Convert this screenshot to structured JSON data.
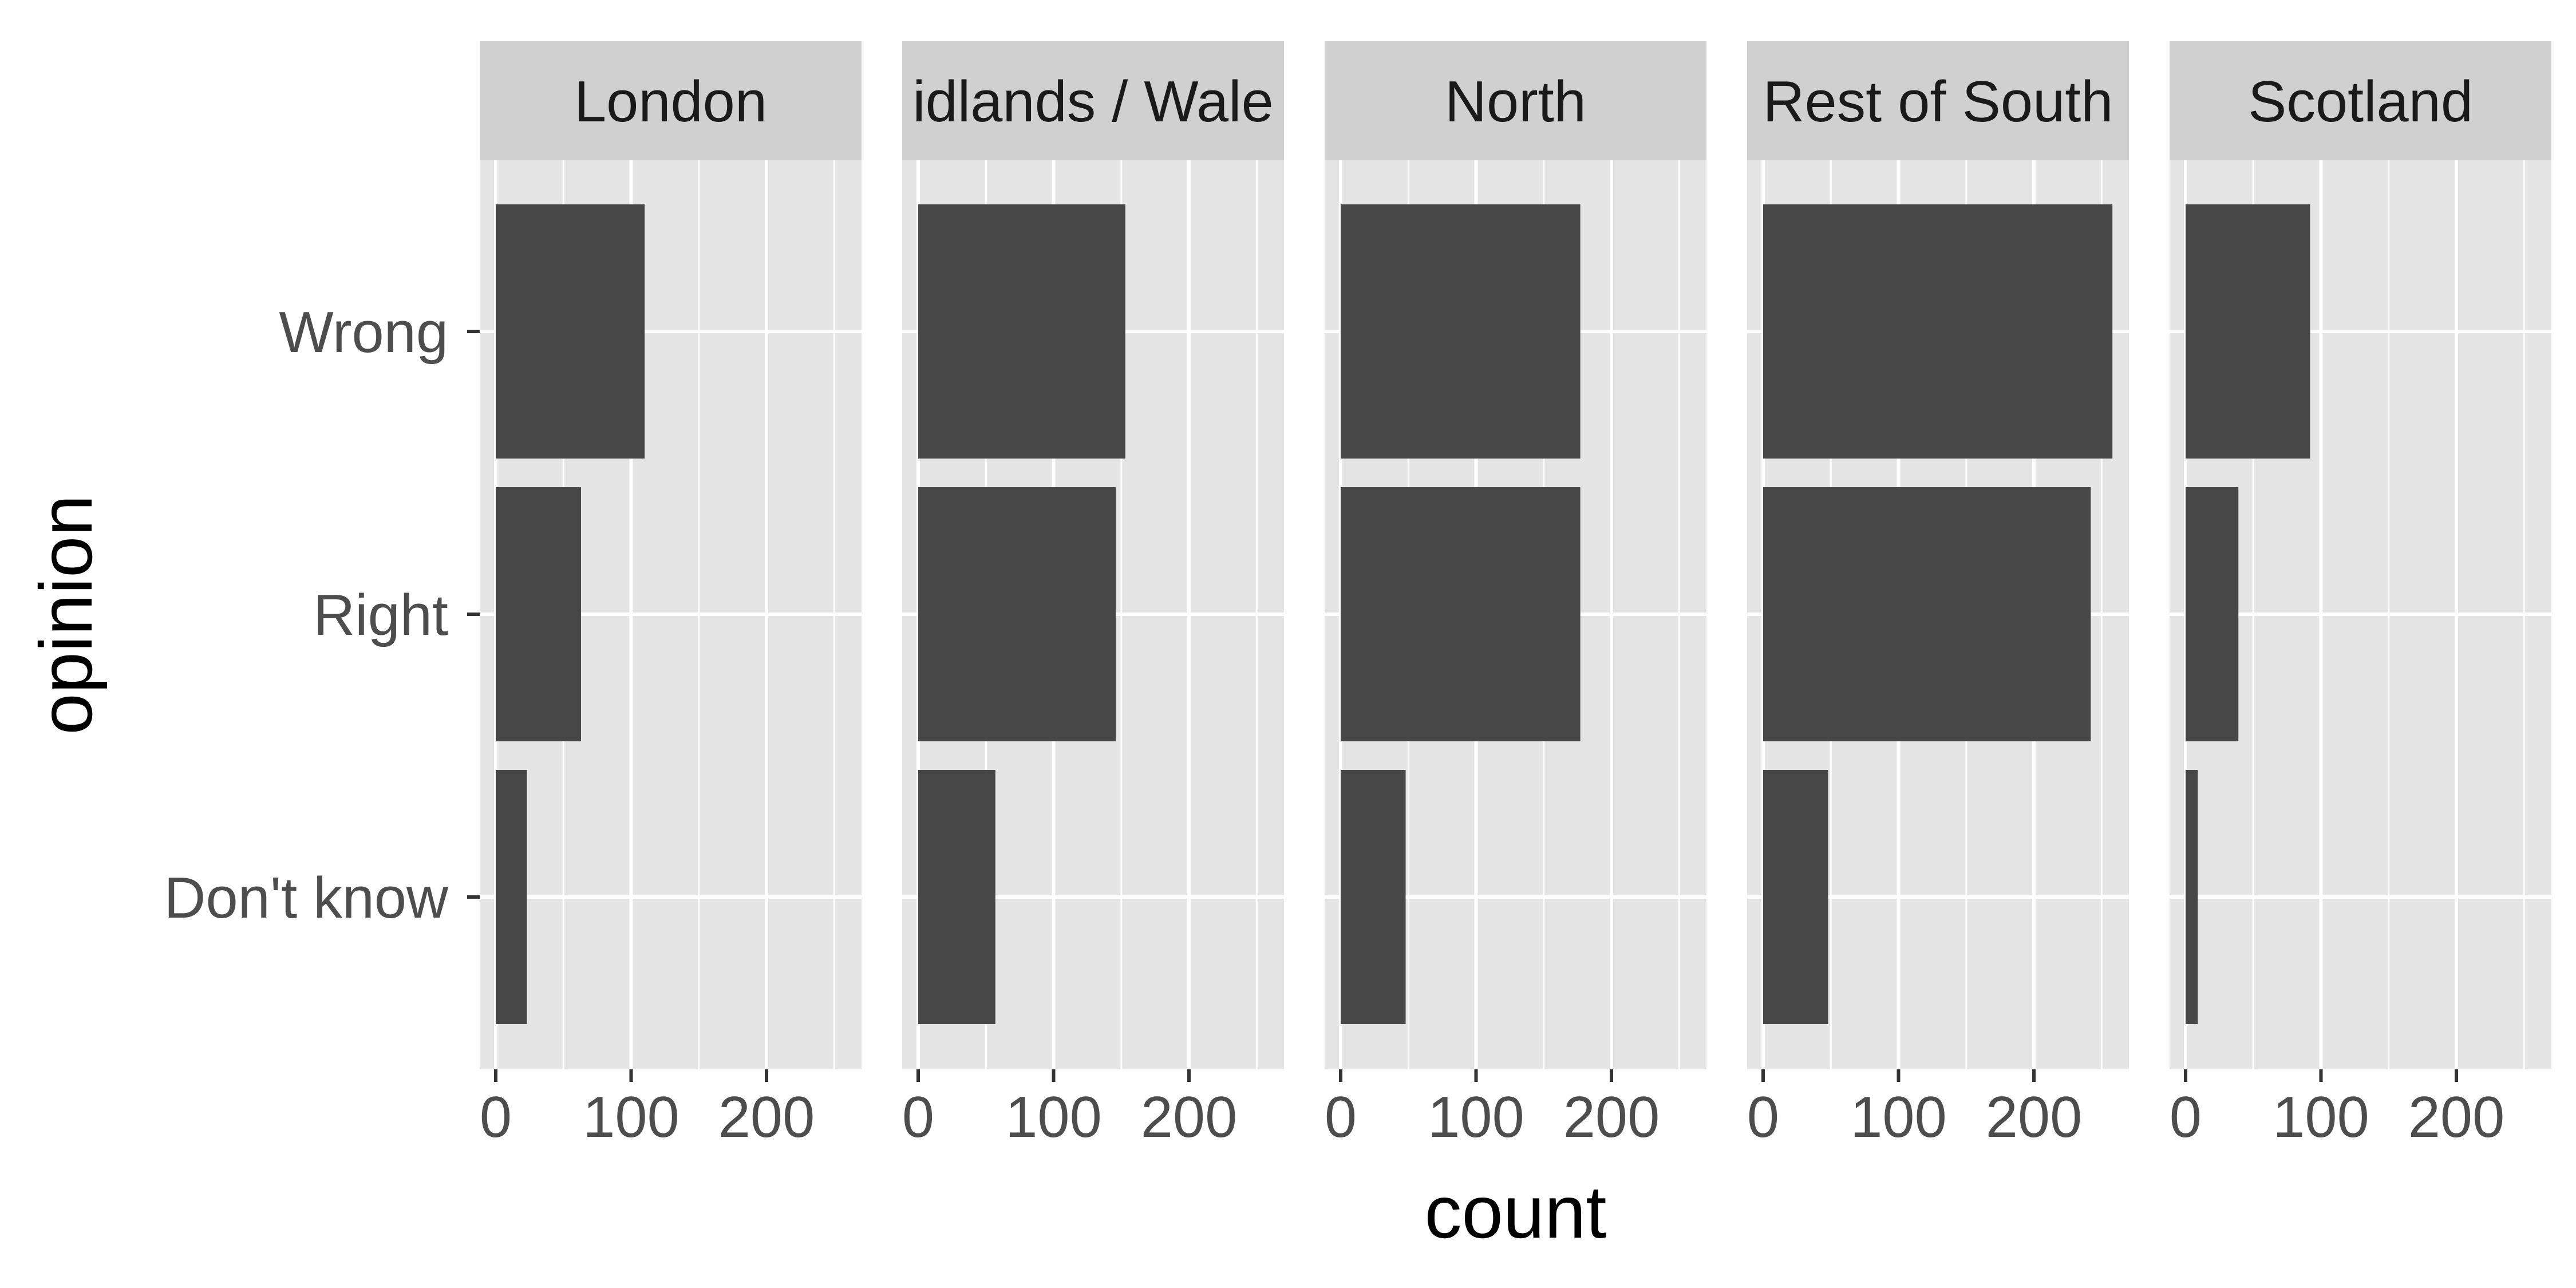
{
  "chart_data": {
    "type": "bar",
    "orientation": "horizontal",
    "faceted": true,
    "xlabel": "count",
    "ylabel": "opinion",
    "categories": [
      "Wrong",
      "Right",
      "Don't know"
    ],
    "xlim": [
      -12,
      270
    ],
    "x_ticks": [
      0,
      100,
      200
    ],
    "grid": true,
    "facets": [
      {
        "name": "London",
        "values": [
          110,
          63,
          23
        ]
      },
      {
        "name": "Midlands / Wales",
        "display_name": "idlands / Wale",
        "values": [
          153,
          146,
          57
        ]
      },
      {
        "name": "North",
        "values": [
          177,
          177,
          48
        ]
      },
      {
        "name": "Rest of South",
        "values": [
          258,
          242,
          48
        ]
      },
      {
        "name": "Scotland",
        "values": [
          92,
          39,
          9
        ]
      }
    ]
  },
  "colors": {
    "bar": "#474747",
    "panel_background": "#e5e5e5",
    "strip_background": "#d0d0d0",
    "grid": "#ffffff",
    "tick": "#333333"
  }
}
